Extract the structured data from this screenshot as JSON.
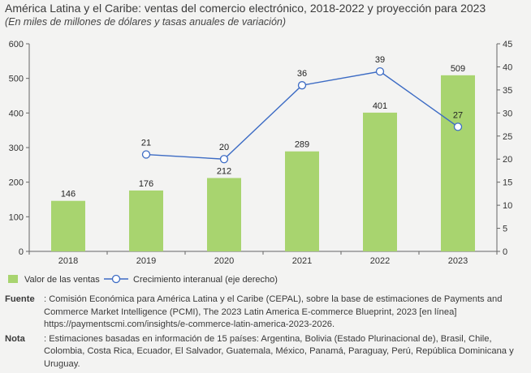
{
  "header": {
    "title": "América Latina y el Caribe: ventas del comercio electrónico, 2018-2022 y proyección para 2023",
    "subtitle": "(En miles de millones de dólares y tasas anuales de variación)"
  },
  "chart_data": {
    "type": "bar",
    "categories": [
      "2018",
      "2019",
      "2020",
      "2021",
      "2022",
      "2023"
    ],
    "series": [
      {
        "name": "Valor de las ventas",
        "type": "bar",
        "axis": "left",
        "color": "#a8d46f",
        "values": [
          146,
          176,
          212,
          289,
          401,
          509
        ]
      },
      {
        "name": "Crecimiento interanual (eje derecho)",
        "type": "line",
        "axis": "right",
        "color": "#3c6bc4",
        "values": [
          null,
          21,
          20,
          36,
          39,
          27
        ]
      }
    ],
    "y_left": {
      "min": 0,
      "max": 600,
      "ticks": [
        0,
        100,
        200,
        300,
        400,
        500,
        600
      ]
    },
    "y_right": {
      "min": 0,
      "max": 45,
      "ticks": [
        0,
        5,
        10,
        15,
        20,
        25,
        30,
        35,
        40,
        45
      ]
    },
    "grid": false,
    "legend": "bottom-left"
  },
  "notes": {
    "source_key": "Fuente",
    "source_text": ": Comisión Económica para América Latina y el Caribe (CEPAL), sobre la base de estimaciones de Payments and Commerce Market Intelligence (PCMI), The 2023 Latin America E-commerce Blueprint, 2023 [en línea] https://paymentscmi.com/insights/e-commerce-latin-america-2023-2026.",
    "note_key": "Nota",
    "note_text": ": Estimaciones basadas en información de 15 países: Argentina, Bolivia (Estado Plurinacional de), Brasil, Chile, Colombia, Costa Rica, Ecuador, El Salvador, Guatemala, México, Panamá, Paraguay, Perú, República Dominicana y Uruguay."
  }
}
